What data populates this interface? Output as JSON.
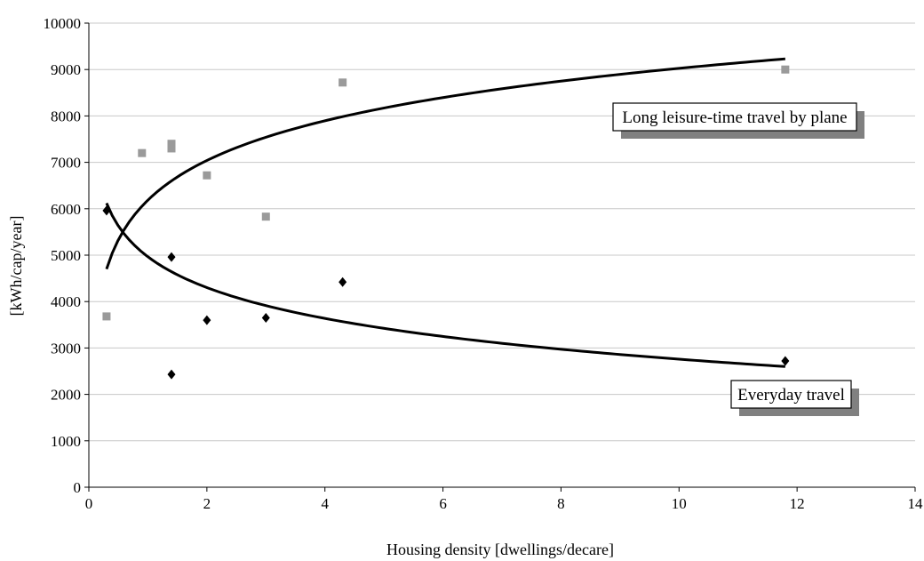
{
  "chart_data": {
    "type": "scatter",
    "xlabel": "Housing density [dwellings/decare]",
    "ylabel": "[kWh/cap/year]",
    "xlim": [
      0,
      14
    ],
    "ylim": [
      0,
      10000
    ],
    "x_ticks": [
      0,
      2,
      4,
      6,
      8,
      10,
      12,
      14
    ],
    "y_ticks": [
      0,
      1000,
      2000,
      3000,
      4000,
      5000,
      6000,
      7000,
      8000,
      9000,
      10000
    ],
    "grid": "horizontal",
    "series": [
      {
        "label": "Long leisure-time travel by plane",
        "marker": "square",
        "color": "#9a9a9a",
        "points": [
          {
            "x": 0.3,
            "y": 3680
          },
          {
            "x": 0.9,
            "y": 7200
          },
          {
            "x": 1.4,
            "y": 7300
          },
          {
            "x": 1.4,
            "y": 7400
          },
          {
            "x": 2.0,
            "y": 6720
          },
          {
            "x": 3.0,
            "y": 5830
          },
          {
            "x": 4.3,
            "y": 8720
          },
          {
            "x": 11.8,
            "y": 9000
          }
        ],
        "trend": {
          "x_start": 0.3,
          "x_end": 11.8,
          "y_start": 4700,
          "y_end": 9230
        }
      },
      {
        "label": "Everyday travel",
        "marker": "diamond",
        "color": "#000000",
        "points": [
          {
            "x": 0.3,
            "y": 5960
          },
          {
            "x": 1.4,
            "y": 4960
          },
          {
            "x": 1.4,
            "y": 2430
          },
          {
            "x": 2.0,
            "y": 3600
          },
          {
            "x": 3.0,
            "y": 3650
          },
          {
            "x": 4.3,
            "y": 4420
          },
          {
            "x": 11.8,
            "y": 2720
          }
        ],
        "trend": {
          "x_start": 0.3,
          "x_end": 11.8,
          "y_start": 6120,
          "y_end": 2600
        }
      }
    ],
    "colors": {
      "grid": "#c8c8c8",
      "trend": "#000000",
      "shadow": "#808080"
    }
  }
}
